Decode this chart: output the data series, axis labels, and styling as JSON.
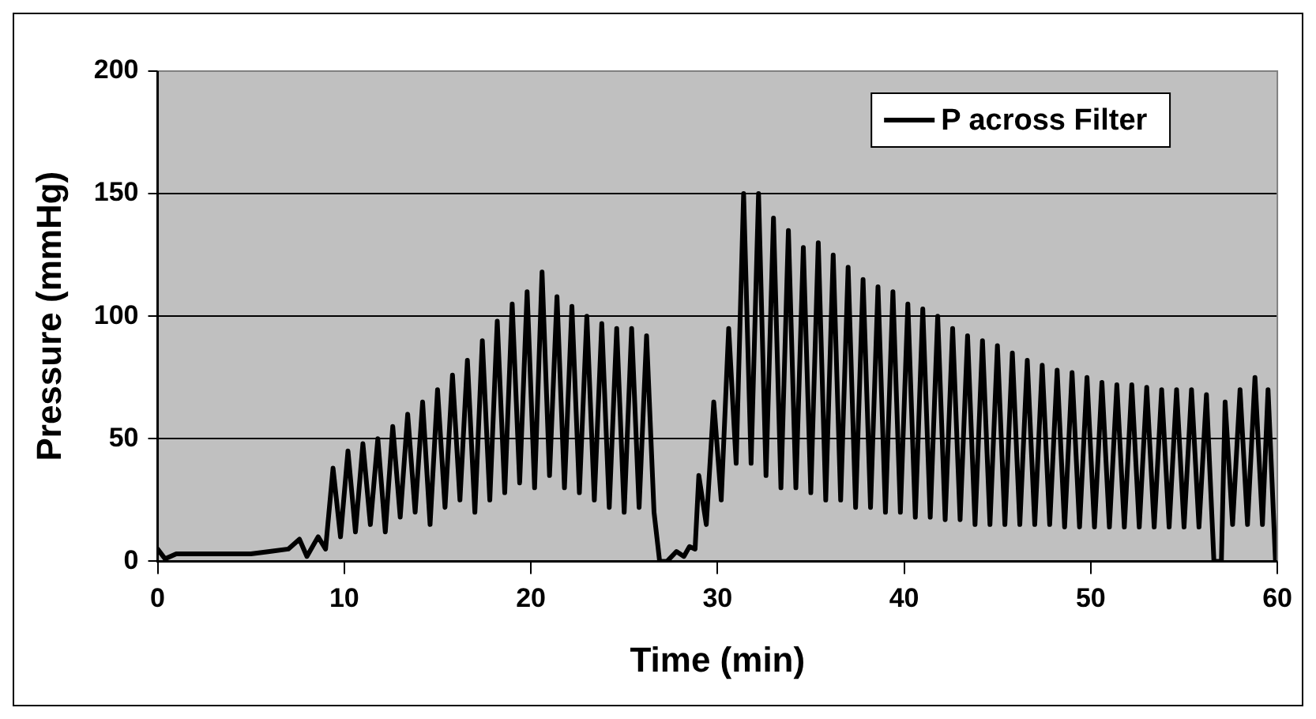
{
  "chart_data": {
    "type": "line",
    "xlabel": "Time (min)",
    "ylabel": "Pressure (mmHg)",
    "x": [
      0,
      0.4,
      1,
      2,
      3,
      4,
      5,
      6,
      7,
      7.6,
      8,
      8.6,
      9,
      9.4,
      9.8,
      10.2,
      10.6,
      11,
      11.4,
      11.8,
      12.2,
      12.6,
      13,
      13.4,
      13.8,
      14.2,
      14.6,
      15,
      15.4,
      15.8,
      16.2,
      16.6,
      17,
      17.4,
      17.8,
      18.2,
      18.6,
      19,
      19.4,
      19.8,
      20.2,
      20.6,
      21,
      21.4,
      21.8,
      22.2,
      22.6,
      23,
      23.4,
      23.8,
      24.2,
      24.6,
      25,
      25.4,
      25.8,
      26.2,
      26.6,
      26.9,
      27.3,
      27.8,
      28.2,
      28.5,
      28.8,
      29,
      29.4,
      29.8,
      30.2,
      30.6,
      31,
      31.4,
      31.8,
      32.2,
      32.6,
      33,
      33.4,
      33.8,
      34.2,
      34.6,
      35,
      35.4,
      35.8,
      36.2,
      36.6,
      37,
      37.4,
      37.8,
      38.2,
      38.6,
      39,
      39.4,
      39.8,
      40.2,
      40.6,
      41,
      41.4,
      41.8,
      42.2,
      42.6,
      43,
      43.4,
      43.8,
      44.2,
      44.6,
      45,
      45.4,
      45.8,
      46.2,
      46.6,
      47,
      47.4,
      47.8,
      48.2,
      48.6,
      49,
      49.4,
      49.8,
      50.2,
      50.6,
      51,
      51.4,
      51.8,
      52.2,
      52.6,
      53,
      53.4,
      53.8,
      54.2,
      54.6,
      55,
      55.4,
      55.8,
      56.2,
      56.6,
      57,
      57.2,
      57.6,
      58,
      58.4,
      58.8,
      59.2,
      59.5,
      59.9
    ],
    "series": [
      {
        "name": "P across Filter",
        "color": "#000000",
        "values": [
          5,
          1,
          3,
          3,
          3,
          3,
          3,
          4,
          5,
          9,
          2,
          10,
          5,
          38,
          10,
          45,
          12,
          48,
          15,
          50,
          12,
          55,
          18,
          60,
          20,
          65,
          15,
          70,
          22,
          76,
          25,
          82,
          20,
          90,
          25,
          98,
          28,
          105,
          32,
          110,
          30,
          118,
          35,
          108,
          30,
          104,
          28,
          100,
          25,
          97,
          22,
          95,
          20,
          95,
          22,
          92,
          20,
          0,
          0,
          4,
          2,
          6,
          5,
          35,
          15,
          65,
          25,
          95,
          40,
          150,
          40,
          150,
          35,
          140,
          30,
          135,
          30,
          128,
          28,
          130,
          25,
          125,
          25,
          120,
          22,
          115,
          22,
          112,
          20,
          110,
          20,
          105,
          18,
          103,
          18,
          100,
          17,
          95,
          17,
          92,
          15,
          90,
          15,
          88,
          15,
          85,
          15,
          82,
          15,
          80,
          15,
          78,
          14,
          77,
          14,
          75,
          14,
          73,
          14,
          72,
          14,
          72,
          14,
          71,
          14,
          70,
          14,
          70,
          14,
          70,
          14,
          68,
          0,
          0,
          65,
          15,
          70,
          15,
          75,
          15,
          70,
          0
        ]
      }
    ],
    "xlim": [
      0,
      60
    ],
    "xticks": [
      0,
      10,
      20,
      30,
      40,
      50,
      60
    ],
    "ylim": [
      0,
      200
    ],
    "yticks": [
      0,
      50,
      100,
      150,
      200
    ],
    "grid": "y",
    "legend": "top right",
    "marker": "none",
    "line_style": "solid"
  }
}
